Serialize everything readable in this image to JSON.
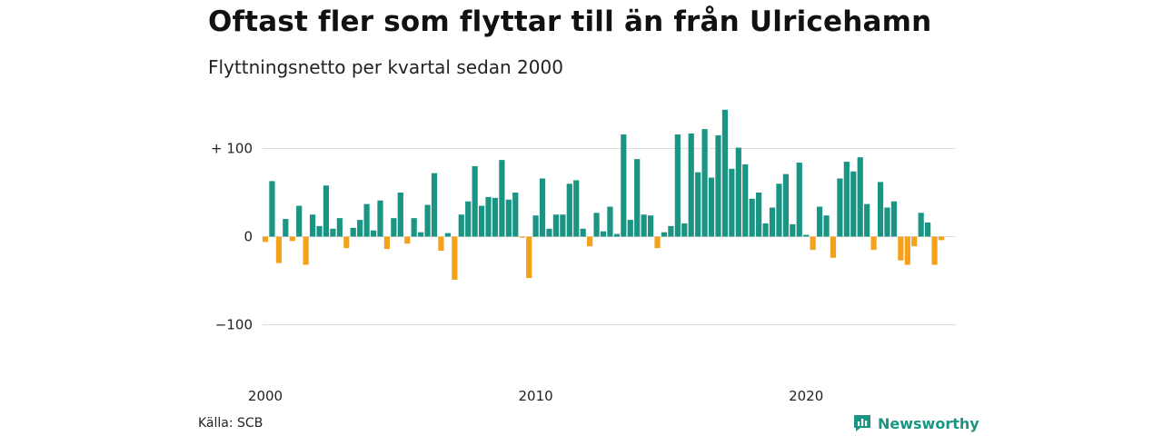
{
  "header": {
    "title": "Oftast fler som flyttar till än från Ulricehamn",
    "subtitle": "Flyttningsnetto per kvartal sedan 2000"
  },
  "footer": {
    "source": "Källa: SCB",
    "brand": "Newsworthy"
  },
  "colors": {
    "positive": "#1a9483",
    "negative": "#f5a11c",
    "grid": "#dddddd",
    "brand": "#1a9483"
  },
  "chart_data": {
    "type": "bar",
    "title": "Oftast fler som flyttar till än från Ulricehamn",
    "subtitle": "Flyttningsnetto per kvartal sedan 2000",
    "ylim": [
      -100,
      145
    ],
    "y_ticks": [
      100,
      0,
      -100
    ],
    "y_tick_labels": [
      "+ 100",
      "0",
      "−100"
    ],
    "x_ticks": [
      "2000",
      "2010",
      "2020"
    ],
    "grid": true,
    "start": "2000 Q1",
    "frequency": "quarter",
    "values": [
      -6,
      63,
      -30,
      20,
      -5,
      35,
      -32,
      25,
      12,
      58,
      9,
      21,
      -13,
      10,
      19,
      37,
      7,
      41,
      -14,
      21,
      50,
      -8,
      21,
      5,
      36,
      72,
      -16,
      4,
      -49,
      25,
      40,
      80,
      35,
      45,
      44,
      87,
      42,
      50,
      -1,
      -47,
      24,
      66,
      9,
      25,
      25,
      60,
      64,
      9,
      -11,
      27,
      6,
      34,
      3,
      116,
      19,
      88,
      25,
      24,
      -13,
      5,
      12,
      116,
      15,
      117,
      73,
      122,
      67,
      115,
      144,
      77,
      101,
      82,
      43,
      50,
      15,
      33,
      60,
      71,
      14,
      84,
      2,
      -15,
      34,
      24,
      -24,
      66,
      85,
      74,
      90,
      37,
      -15,
      62,
      33,
      40,
      -27,
      -32,
      -11,
      27,
      16,
      -32,
      -4
    ]
  }
}
